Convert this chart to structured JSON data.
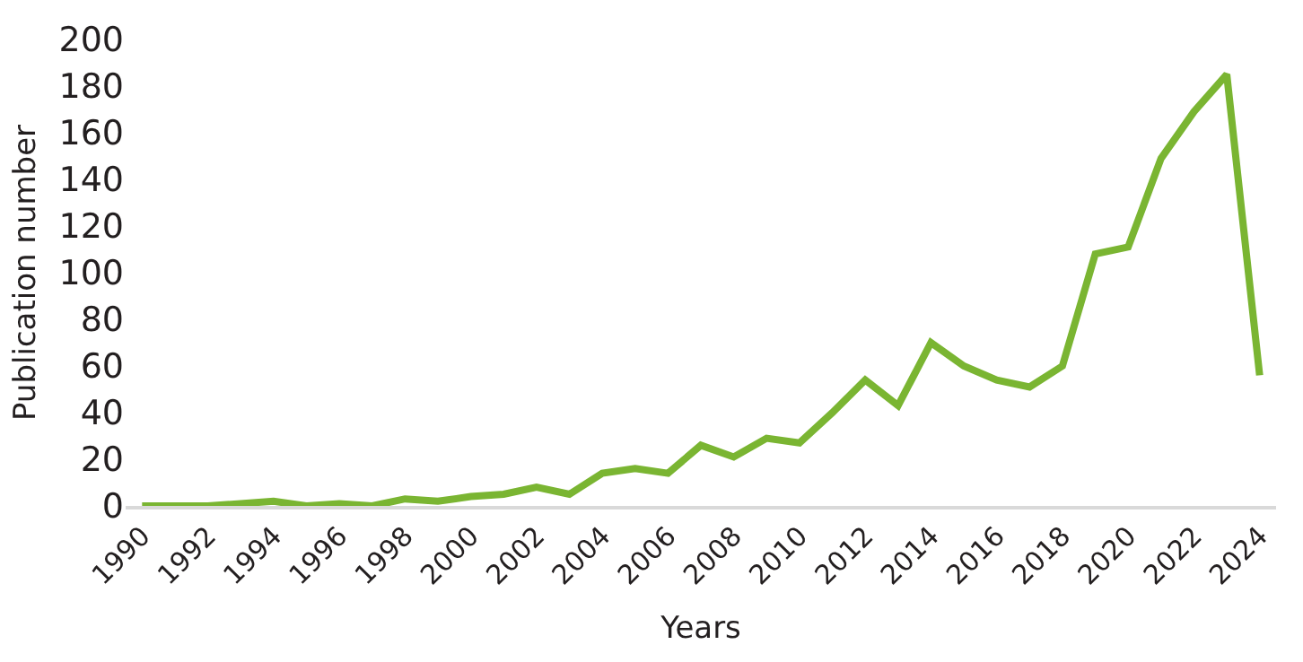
{
  "chart_data": {
    "type": "line",
    "xlabel": "Years",
    "ylabel": "Publication number",
    "x": [
      1990,
      1991,
      1992,
      1993,
      1994,
      1995,
      1996,
      1997,
      1998,
      1999,
      2000,
      2001,
      2002,
      2003,
      2004,
      2005,
      2006,
      2007,
      2008,
      2009,
      2010,
      2011,
      2012,
      2013,
      2014,
      2015,
      2016,
      2017,
      2018,
      2019,
      2020,
      2021,
      2022,
      2023,
      2024
    ],
    "series": [
      {
        "color": "#7ab532",
        "values": [
          0,
          0,
          0,
          1,
          2,
          0,
          1,
          0,
          3,
          2,
          4,
          5,
          8,
          5,
          14,
          16,
          14,
          26,
          21,
          29,
          27,
          40,
          54,
          43,
          70,
          60,
          54,
          51,
          60,
          108,
          111,
          149,
          169,
          185,
          56
        ]
      }
    ],
    "xlim": [
      1989.5,
      2024.5
    ],
    "xticks": [
      1990,
      1992,
      1994,
      1996,
      1998,
      2000,
      2002,
      2004,
      2006,
      2008,
      2010,
      2012,
      2014,
      2016,
      2018,
      2020,
      2022,
      2024
    ],
    "ylim": [
      0,
      200
    ],
    "yticks": [
      0,
      20,
      40,
      60,
      80,
      100,
      120,
      140,
      160,
      180,
      200
    ],
    "legend": false,
    "marker": "none",
    "line_style": "solid"
  }
}
